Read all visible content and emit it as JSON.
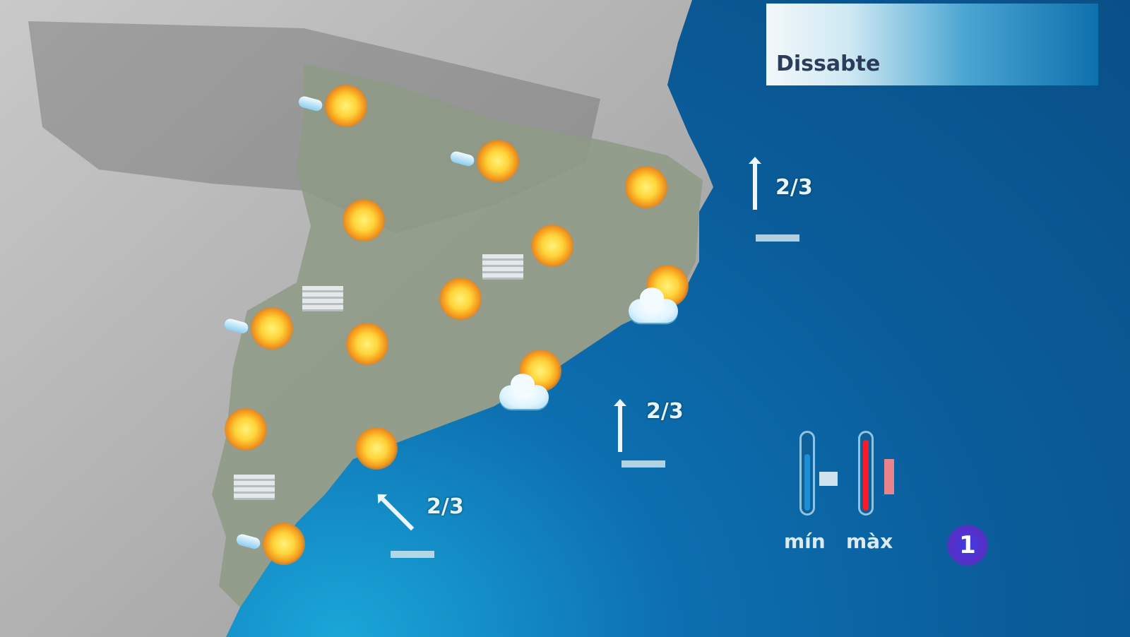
{
  "header": {
    "day": "Dissabte"
  },
  "wind": [
    {
      "direction": "N",
      "force": "2/3"
    },
    {
      "direction": "N",
      "force": "2/3"
    },
    {
      "direction": "NW",
      "force": "2/3"
    }
  ],
  "legend": {
    "min_label": "mín",
    "max_label": "màx",
    "min_color": "#1e8fd6",
    "max_color": "#ff1a2a"
  },
  "logo": {
    "text": "1"
  },
  "icons": [
    "sun-rain-icon",
    "sun-icon",
    "sun-cloud-icon",
    "fog-icon"
  ]
}
